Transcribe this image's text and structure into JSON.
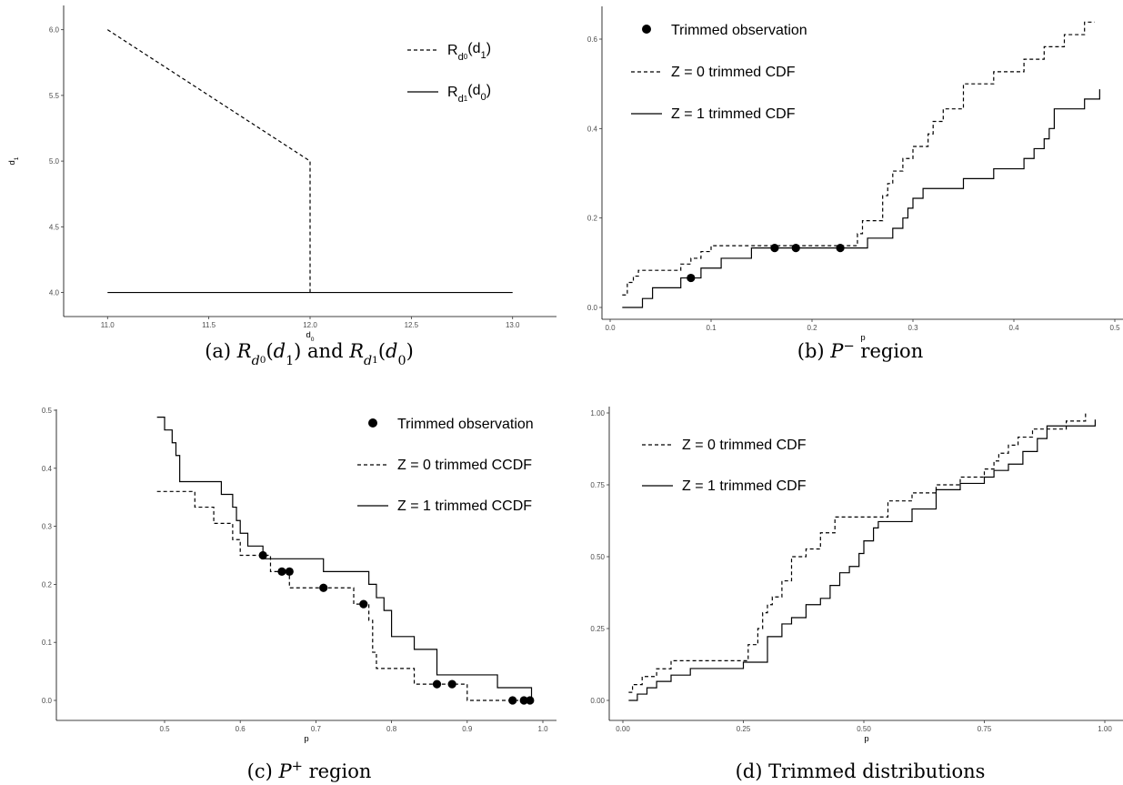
{
  "chart_data": [
    {
      "id": "a",
      "type": "line",
      "caption": "(a) R_{d_0}(d_1) and R_{d_1}(d_0)",
      "caption_parts": {
        "pre": "(a) ",
        "mid": " and ",
        "post": ""
      },
      "xlabel": "d0",
      "ylabel": "d1",
      "xlim": [
        11.0,
        13.0
      ],
      "ylim": [
        4.0,
        6.0
      ],
      "xticks": [
        "11.0",
        "11.5",
        "12.0",
        "12.5",
        "13.0"
      ],
      "yticks": [
        "4.0",
        "4.5",
        "5.0",
        "5.5",
        "6.0"
      ],
      "legend_position": "top-right",
      "series": [
        {
          "name": "R_{d0}(d1)",
          "style": "dashed",
          "x": [
            11.0,
            12.0,
            12.0
          ],
          "y": [
            6.0,
            5.0,
            4.0
          ]
        },
        {
          "name": "R_{d1}(d0)",
          "style": "solid",
          "x": [
            11.0,
            13.0
          ],
          "y": [
            4.0,
            4.0
          ]
        }
      ]
    },
    {
      "id": "b",
      "type": "line",
      "caption": "(b) P^- region",
      "xlabel": "p",
      "ylabel": "",
      "xlim": [
        0.0,
        0.5
      ],
      "ylim": [
        0.0,
        0.6
      ],
      "xticks": [
        "0.0",
        "0.1",
        "0.2",
        "0.3",
        "0.4",
        "0.5"
      ],
      "yticks": [
        "0.0",
        "0.2",
        "0.4",
        "0.6"
      ],
      "legend_position": "top-left",
      "series": [
        {
          "name": "Z = 0 trimmed CDF",
          "style": "dashed",
          "x": [
            0.012,
            0.017,
            0.023,
            0.028,
            0.07,
            0.08,
            0.09,
            0.1,
            0.14,
            0.16,
            0.2,
            0.23,
            0.245,
            0.25,
            0.26,
            0.27,
            0.275,
            0.28,
            0.285,
            0.29,
            0.3,
            0.31,
            0.315,
            0.32,
            0.33,
            0.34,
            0.35,
            0.37,
            0.38,
            0.4,
            0.41,
            0.42,
            0.43,
            0.44,
            0.45,
            0.46,
            0.47,
            0.48
          ],
          "y": [
            0.028,
            0.056,
            0.07,
            0.083,
            0.097,
            0.11,
            0.125,
            0.138,
            0.138,
            0.138,
            0.138,
            0.138,
            0.165,
            0.194,
            0.194,
            0.25,
            0.277,
            0.305,
            0.305,
            0.333,
            0.36,
            0.36,
            0.388,
            0.416,
            0.444,
            0.444,
            0.5,
            0.5,
            0.527,
            0.527,
            0.555,
            0.555,
            0.583,
            0.583,
            0.61,
            0.61,
            0.638,
            0.638
          ]
        },
        {
          "name": "Z = 1 trimmed CDF",
          "style": "solid",
          "x": [
            0.012,
            0.032,
            0.042,
            0.06,
            0.07,
            0.09,
            0.11,
            0.14,
            0.16,
            0.2,
            0.23,
            0.24,
            0.255,
            0.26,
            0.28,
            0.29,
            0.295,
            0.3,
            0.31,
            0.33,
            0.35,
            0.37,
            0.38,
            0.4,
            0.41,
            0.42,
            0.43,
            0.435,
            0.44,
            0.46,
            0.47,
            0.48,
            0.485
          ],
          "y": [
            0.0,
            0.02,
            0.044,
            0.044,
            0.066,
            0.088,
            0.11,
            0.133,
            0.133,
            0.133,
            0.133,
            0.133,
            0.155,
            0.155,
            0.177,
            0.2,
            0.222,
            0.244,
            0.266,
            0.266,
            0.288,
            0.288,
            0.31,
            0.31,
            0.333,
            0.355,
            0.377,
            0.4,
            0.444,
            0.444,
            0.466,
            0.466,
            0.488
          ]
        },
        {
          "name": "Trimmed observation",
          "style": "points",
          "x": [
            0.08,
            0.163,
            0.184,
            0.228
          ],
          "y": [
            0.066,
            0.133,
            0.133,
            0.133
          ]
        }
      ]
    },
    {
      "id": "c",
      "type": "line",
      "caption": "(c) P^+ region",
      "xlabel": "p",
      "ylabel": "",
      "xlim": [
        0.5,
        1.0
      ],
      "ylim": [
        0.0,
        0.5
      ],
      "xticks": [
        "0.5",
        "0.6",
        "0.7",
        "0.8",
        "0.9",
        "1.0"
      ],
      "yticks": [
        "0.0",
        "0.1",
        "0.2",
        "0.3",
        "0.4",
        "0.5"
      ],
      "legend_position": "top-right",
      "series": [
        {
          "name": "Z = 0 trimmed CCDF",
          "style": "dashed",
          "x": [
            0.49,
            0.52,
            0.54,
            0.565,
            0.59,
            0.6,
            0.62,
            0.64,
            0.665,
            0.71,
            0.75,
            0.77,
            0.775,
            0.78,
            0.8,
            0.83,
            0.86,
            0.9,
            0.96,
            0.985
          ],
          "y": [
            0.36,
            0.36,
            0.333,
            0.305,
            0.277,
            0.25,
            0.25,
            0.222,
            0.194,
            0.194,
            0.166,
            0.138,
            0.083,
            0.055,
            0.055,
            0.028,
            0.028,
            0.0,
            0.0,
            0.0
          ]
        },
        {
          "name": "Z = 1 trimmed CCDF",
          "style": "solid",
          "x": [
            0.49,
            0.5,
            0.51,
            0.515,
            0.52,
            0.575,
            0.59,
            0.595,
            0.6,
            0.61,
            0.63,
            0.64,
            0.71,
            0.77,
            0.78,
            0.79,
            0.8,
            0.83,
            0.86,
            0.94,
            0.985
          ],
          "y": [
            0.488,
            0.466,
            0.444,
            0.422,
            0.377,
            0.355,
            0.333,
            0.31,
            0.288,
            0.266,
            0.244,
            0.244,
            0.222,
            0.2,
            0.177,
            0.155,
            0.11,
            0.088,
            0.044,
            0.022,
            0.0
          ]
        },
        {
          "name": "Trimmed observation",
          "style": "points",
          "x": [
            0.63,
            0.655,
            0.665,
            0.71,
            0.763,
            0.86,
            0.88,
            0.96,
            0.975,
            0.983
          ],
          "y": [
            0.25,
            0.222,
            0.222,
            0.194,
            0.166,
            0.028,
            0.028,
            0.0,
            0.0,
            0.0
          ]
        }
      ]
    },
    {
      "id": "d",
      "type": "line",
      "caption": "(d) Trimmed distributions",
      "xlabel": "p",
      "ylabel": "",
      "xlim": [
        0.0,
        1.0
      ],
      "ylim": [
        0.0,
        1.0
      ],
      "xticks": [
        "0.00",
        "0.25",
        "0.50",
        "0.75",
        "1.00"
      ],
      "yticks": [
        "0.00",
        "0.25",
        "0.50",
        "0.75",
        "1.00"
      ],
      "legend_position": "top-left",
      "series": [
        {
          "name": "Z = 0 trimmed CDF",
          "style": "dashed",
          "x": [
            0.012,
            0.02,
            0.04,
            0.07,
            0.1,
            0.25,
            0.26,
            0.28,
            0.29,
            0.3,
            0.31,
            0.33,
            0.35,
            0.38,
            0.41,
            0.44,
            0.5,
            0.55,
            0.6,
            0.65,
            0.7,
            0.75,
            0.77,
            0.78,
            0.8,
            0.82,
            0.85,
            0.92,
            0.96
          ],
          "y": [
            0.028,
            0.055,
            0.083,
            0.11,
            0.138,
            0.138,
            0.194,
            0.25,
            0.305,
            0.333,
            0.36,
            0.416,
            0.5,
            0.527,
            0.583,
            0.638,
            0.638,
            0.694,
            0.722,
            0.75,
            0.777,
            0.805,
            0.833,
            0.86,
            0.888,
            0.916,
            0.944,
            0.972,
            1.0
          ]
        },
        {
          "name": "Z = 1 trimmed CDF",
          "style": "solid",
          "x": [
            0.012,
            0.03,
            0.05,
            0.07,
            0.1,
            0.14,
            0.25,
            0.3,
            0.33,
            0.35,
            0.38,
            0.41,
            0.43,
            0.45,
            0.47,
            0.49,
            0.5,
            0.52,
            0.53,
            0.6,
            0.65,
            0.7,
            0.75,
            0.77,
            0.8,
            0.83,
            0.86,
            0.88,
            0.98
          ],
          "y": [
            0.0,
            0.022,
            0.044,
            0.066,
            0.088,
            0.111,
            0.133,
            0.222,
            0.266,
            0.288,
            0.333,
            0.355,
            0.4,
            0.444,
            0.466,
            0.511,
            0.555,
            0.6,
            0.622,
            0.666,
            0.733,
            0.755,
            0.777,
            0.8,
            0.822,
            0.866,
            0.911,
            0.955,
            0.977
          ]
        }
      ]
    }
  ]
}
